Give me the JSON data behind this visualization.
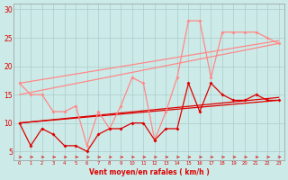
{
  "x": [
    0,
    1,
    2,
    3,
    4,
    5,
    6,
    7,
    8,
    9,
    10,
    11,
    12,
    13,
    14,
    15,
    16,
    17,
    18,
    19,
    20,
    21,
    22,
    23
  ],
  "line_light_zigzag": [
    17,
    15,
    15,
    12,
    12,
    13,
    6,
    12,
    9,
    13,
    18,
    17,
    7,
    12,
    18,
    28,
    28,
    18,
    26,
    26,
    26,
    26,
    25,
    24
  ],
  "line_dark_zigzag": [
    10,
    6,
    9,
    8,
    6,
    6,
    5,
    8,
    9,
    9,
    10,
    10,
    7,
    9,
    9,
    17,
    12,
    17,
    15,
    14,
    14,
    15,
    14,
    14
  ],
  "trend_light1": [
    17,
    24.5
  ],
  "trend_light2": [
    15,
    24.0
  ],
  "trend_dark1": [
    10,
    14.5
  ],
  "trend_dark2": [
    10,
    14.0
  ],
  "trend_x": [
    0,
    23
  ],
  "bg_color": "#cceae7",
  "grid_color": "#aacccc",
  "dark_red": "#dd0000",
  "light_red": "#ff8888",
  "xlabel": "Vent moyen/en rafales ( km/h )",
  "yticks": [
    5,
    10,
    15,
    20,
    25,
    30
  ],
  "xticks": [
    0,
    1,
    2,
    3,
    4,
    5,
    6,
    7,
    8,
    9,
    10,
    11,
    12,
    13,
    14,
    15,
    16,
    17,
    18,
    19,
    20,
    21,
    22,
    23
  ],
  "xlim": [
    -0.5,
    23.5
  ],
  "ylim": [
    3.5,
    31
  ]
}
